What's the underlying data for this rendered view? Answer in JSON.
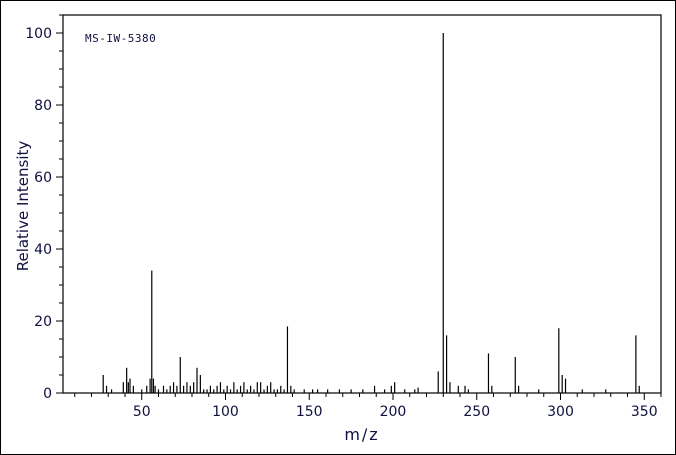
{
  "colors": {
    "background": "#ffffff",
    "axis_line": "#000000",
    "peak_line": "#000000",
    "text": "#101040"
  },
  "chart_data": {
    "type": "bar",
    "variant": "mass-spectrum-stick-plot",
    "title": "MS-IW-5380",
    "xlabel": "m/z",
    "ylabel": "Relative Intensity",
    "xlim": [
      3,
      360
    ],
    "ylim": [
      0,
      105
    ],
    "x_major_ticks": [
      50,
      100,
      150,
      200,
      250,
      300,
      350
    ],
    "x_minor_tick_step": 10,
    "y_major_ticks": [
      0,
      20,
      40,
      60,
      80,
      100
    ],
    "y_minor_tick_step": 5,
    "grid": false,
    "legend": false,
    "peaks": [
      [
        27,
        5
      ],
      [
        29,
        2
      ],
      [
        32,
        1
      ],
      [
        39,
        3
      ],
      [
        41,
        7
      ],
      [
        42,
        3
      ],
      [
        43,
        4
      ],
      [
        45,
        2
      ],
      [
        50,
        1
      ],
      [
        53,
        2
      ],
      [
        55,
        4
      ],
      [
        56,
        34
      ],
      [
        57,
        4
      ],
      [
        58,
        2
      ],
      [
        60,
        1
      ],
      [
        63,
        2
      ],
      [
        65,
        1
      ],
      [
        67,
        2
      ],
      [
        69,
        3
      ],
      [
        71,
        2
      ],
      [
        73,
        10
      ],
      [
        75,
        2
      ],
      [
        77,
        3
      ],
      [
        79,
        2
      ],
      [
        81,
        3
      ],
      [
        83,
        7
      ],
      [
        85,
        5
      ],
      [
        87,
        1
      ],
      [
        89,
        1
      ],
      [
        91,
        2
      ],
      [
        93,
        1
      ],
      [
        95,
        2
      ],
      [
        97,
        3
      ],
      [
        99,
        1
      ],
      [
        101,
        2
      ],
      [
        103,
        1
      ],
      [
        105,
        3
      ],
      [
        107,
        1
      ],
      [
        109,
        2
      ],
      [
        111,
        3
      ],
      [
        113,
        1
      ],
      [
        115,
        2
      ],
      [
        117,
        1
      ],
      [
        119,
        3
      ],
      [
        121,
        3
      ],
      [
        123,
        1
      ],
      [
        125,
        2
      ],
      [
        127,
        3
      ],
      [
        129,
        1
      ],
      [
        131,
        1
      ],
      [
        133,
        2
      ],
      [
        135,
        1
      ],
      [
        137,
        18.5
      ],
      [
        139,
        2
      ],
      [
        141,
        1
      ],
      [
        147,
        1
      ],
      [
        152,
        1
      ],
      [
        155,
        1
      ],
      [
        161,
        1
      ],
      [
        168,
        1
      ],
      [
        175,
        1
      ],
      [
        182,
        1
      ],
      [
        189,
        2
      ],
      [
        195,
        1
      ],
      [
        199,
        2
      ],
      [
        201,
        3
      ],
      [
        207,
        1
      ],
      [
        213,
        1
      ],
      [
        215,
        1.5
      ],
      [
        227,
        6
      ],
      [
        230,
        100
      ],
      [
        232,
        16
      ],
      [
        234,
        3
      ],
      [
        239,
        2
      ],
      [
        243,
        2
      ],
      [
        245,
        1
      ],
      [
        257,
        11
      ],
      [
        259,
        2
      ],
      [
        273,
        10
      ],
      [
        275,
        2
      ],
      [
        287,
        1
      ],
      [
        299,
        18
      ],
      [
        301,
        5
      ],
      [
        303,
        4
      ],
      [
        313,
        1
      ],
      [
        327,
        1
      ],
      [
        345,
        16
      ],
      [
        347,
        2
      ]
    ]
  }
}
